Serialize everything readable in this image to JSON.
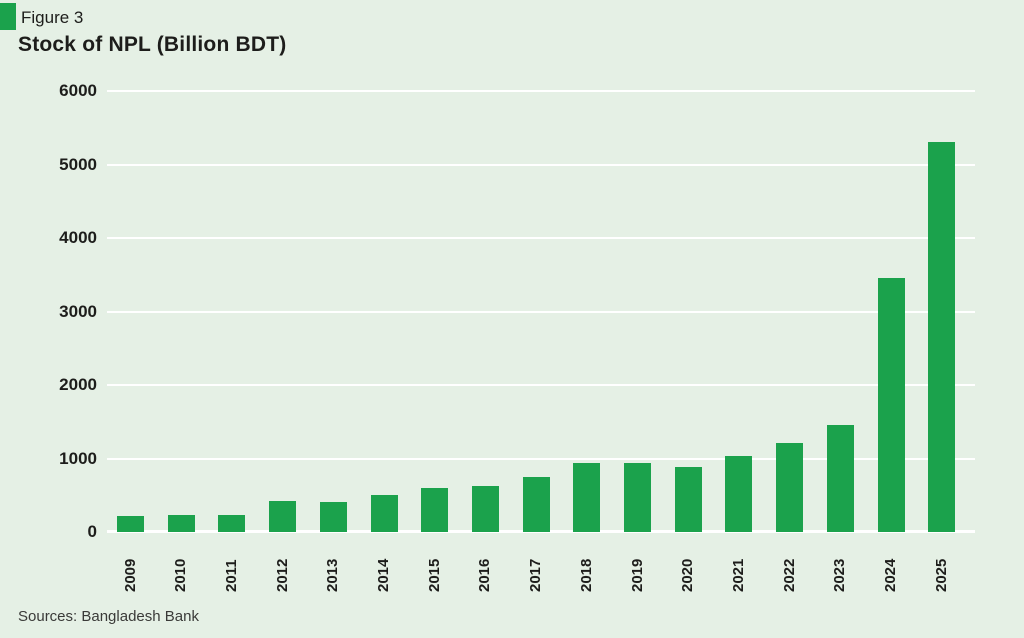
{
  "header": {
    "figure_label": "Figure 3",
    "title": "Stock of NPL (Billion BDT)"
  },
  "footer": {
    "source": "Sources: Bangladesh Bank"
  },
  "colors": {
    "background": "#e5f0e5",
    "bar": "#1ba24c",
    "gridline": "#ffffff",
    "text": "#1d1d1b"
  },
  "chart_data": {
    "type": "bar",
    "title": "Stock of NPL (Billion BDT)",
    "categories": [
      "2009",
      "2010",
      "2011",
      "2012",
      "2013",
      "2014",
      "2015",
      "2016",
      "2017",
      "2018",
      "2019",
      "2020",
      "2021",
      "2022",
      "2023",
      "2024",
      "2025"
    ],
    "values": [
      224,
      227,
      226,
      427,
      406,
      502,
      594,
      622,
      743,
      939,
      943,
      887,
      1033,
      1207,
      1456,
      3450,
      5300
    ],
    "xlabel": "",
    "ylabel": "",
    "ylim": [
      0,
      6000
    ],
    "yticks": [
      6000,
      5000,
      4000,
      3000,
      2000,
      1000,
      0
    ],
    "grid": "horizontal",
    "legend_position": "none",
    "bar_color": "#1ba24c",
    "background_color": "#e5f0e5"
  }
}
